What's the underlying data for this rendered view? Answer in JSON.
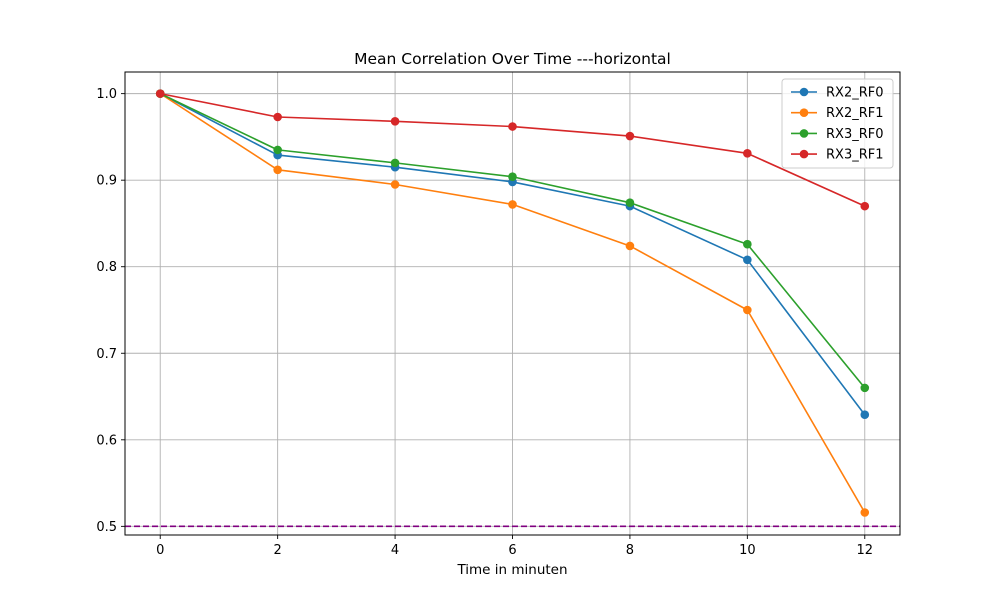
{
  "chart_data": {
    "type": "line",
    "title": "Mean Correlation Over Time ---horizontal",
    "xlabel": "Time in minuten",
    "ylabel": "",
    "x": [
      0,
      2,
      4,
      6,
      8,
      10,
      12
    ],
    "xlim": [
      -0.6,
      12.6
    ],
    "ylim": [
      0.49,
      1.025
    ],
    "xticks": [
      0,
      2,
      4,
      6,
      8,
      10,
      12
    ],
    "xtick_labels": [
      "0",
      "2",
      "4",
      "6",
      "8",
      "10",
      "12"
    ],
    "yticks": [
      0.5,
      0.6,
      0.7,
      0.8,
      0.9,
      1.0
    ],
    "ytick_labels": [
      "0.5",
      "0.6",
      "0.7",
      "0.8",
      "0.9",
      "1.0"
    ],
    "grid": true,
    "legend_position": "top-right",
    "series": [
      {
        "name": "RX2_RF0",
        "color": "#1f77b4",
        "values": [
          1.0,
          0.929,
          0.915,
          0.898,
          0.87,
          0.808,
          0.629
        ]
      },
      {
        "name": "RX2_RF1",
        "color": "#ff7f0e",
        "values": [
          1.0,
          0.912,
          0.895,
          0.872,
          0.824,
          0.75,
          0.516
        ]
      },
      {
        "name": "RX3_RF0",
        "color": "#2ca02c",
        "values": [
          1.0,
          0.935,
          0.92,
          0.904,
          0.874,
          0.826,
          0.66
        ]
      },
      {
        "name": "RX3_RF1",
        "color": "#d62728",
        "values": [
          1.0,
          0.973,
          0.968,
          0.962,
          0.951,
          0.931,
          0.87
        ]
      }
    ],
    "reference_line": {
      "y": 0.5,
      "color": "#800080",
      "style": "dashed"
    }
  }
}
